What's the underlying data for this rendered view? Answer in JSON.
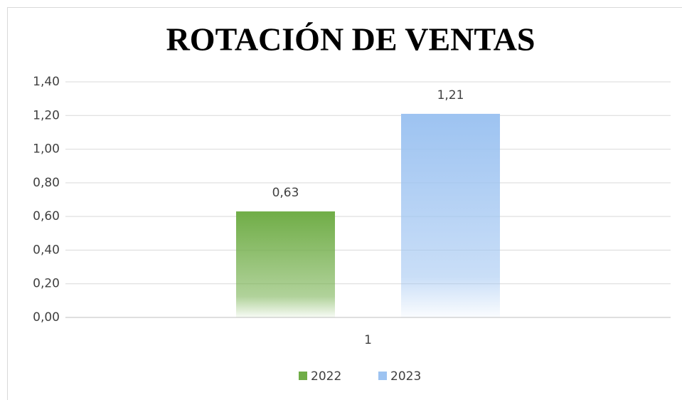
{
  "chart_data": {
    "type": "bar",
    "title": "ROTACIÓN DE VENTAS",
    "categories": [
      "1"
    ],
    "series": [
      {
        "name": "2022",
        "color": "#70ad47",
        "values": [
          0.63
        ],
        "value_labels": [
          "0,63"
        ]
      },
      {
        "name": "2023",
        "color": "#9dc3f1",
        "values": [
          1.21
        ],
        "value_labels": [
          "1,21"
        ]
      }
    ],
    "ylim": [
      0,
      1.4
    ],
    "yticks": [
      {
        "value": 0,
        "label": "0,00"
      },
      {
        "value": 0.2,
        "label": "0,20"
      },
      {
        "value": 0.4,
        "label": "0,40"
      },
      {
        "value": 0.6,
        "label": "0,60"
      },
      {
        "value": 0.8,
        "label": "0,80"
      },
      {
        "value": 1.0,
        "label": "1,00"
      },
      {
        "value": 1.2,
        "label": "1,20"
      },
      {
        "value": 1.4,
        "label": "1,40"
      }
    ],
    "grid": true,
    "legend": "bottom"
  }
}
